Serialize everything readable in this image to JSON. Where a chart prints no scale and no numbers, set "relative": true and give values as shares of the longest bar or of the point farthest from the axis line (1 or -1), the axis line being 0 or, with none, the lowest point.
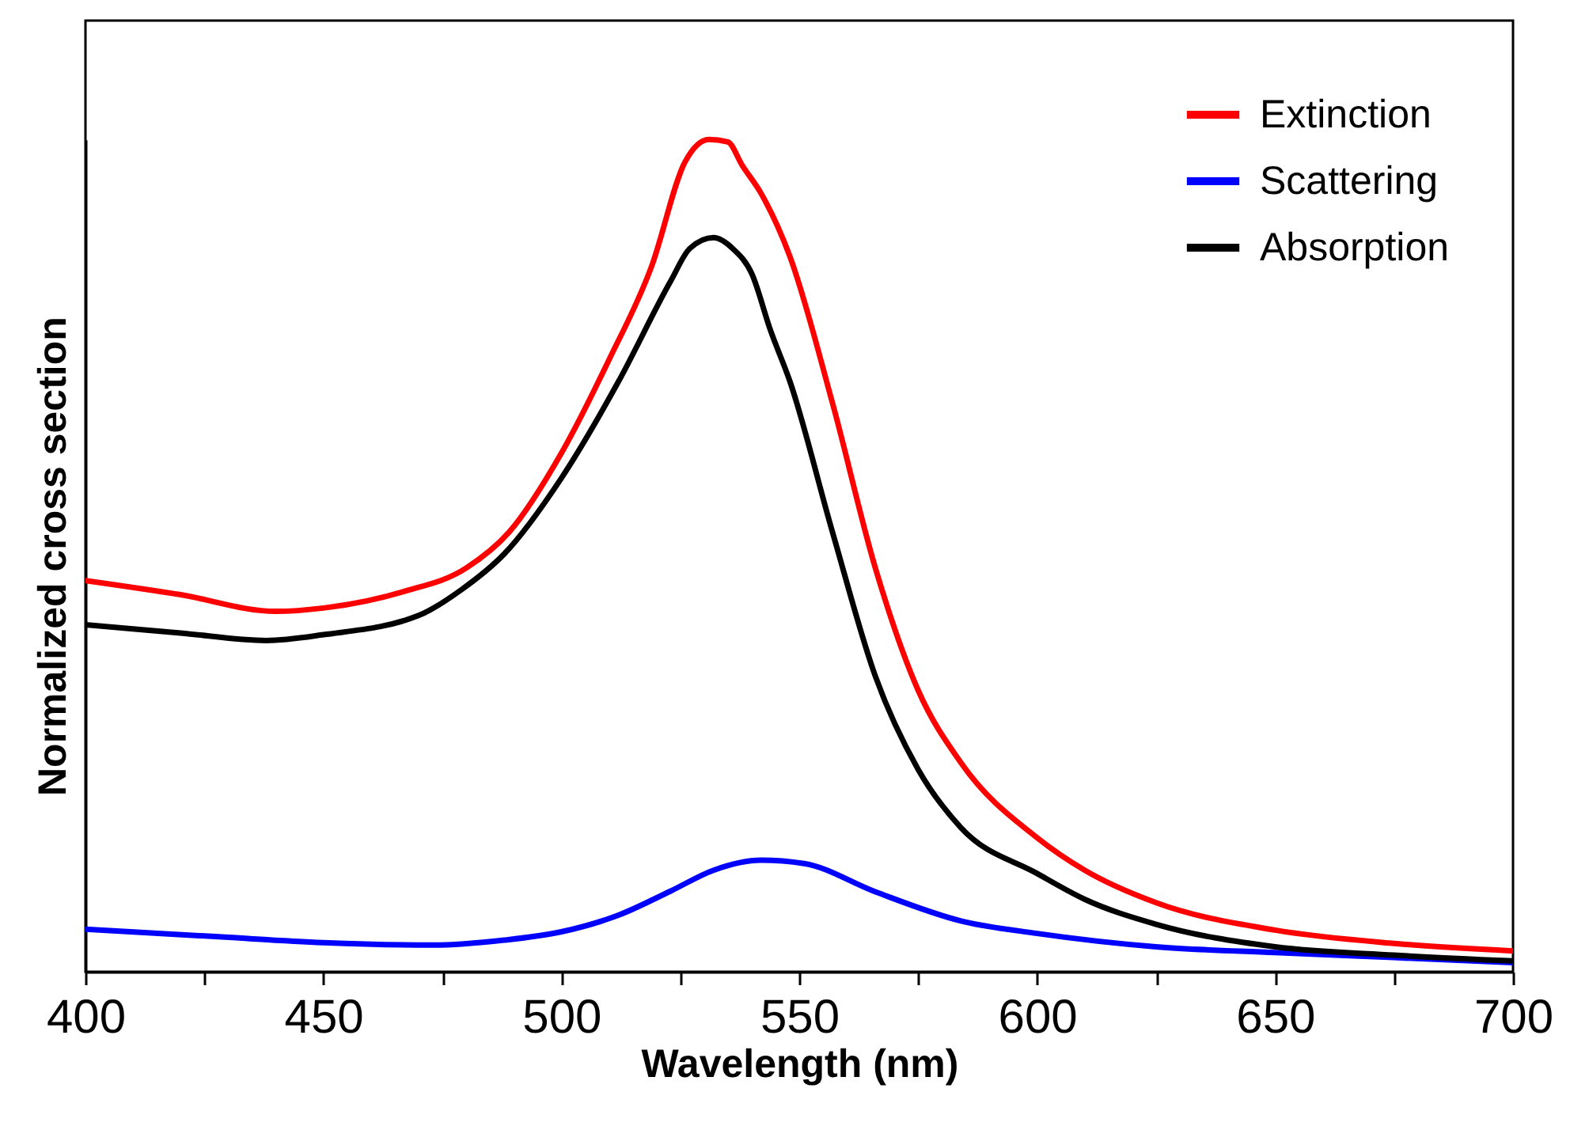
{
  "chart_data": {
    "type": "line",
    "xlabel": "Wavelength (nm)",
    "ylabel": "Normalized cross section",
    "relative": true,
    "xlim": [
      400,
      700
    ],
    "xticks": [
      400,
      {
        "value": 425,
        "label": null
      },
      450,
      {
        "value": 475,
        "label": null
      },
      500,
      {
        "value": 525,
        "label": null
      },
      550,
      {
        "value": 575,
        "label": null
      },
      600,
      {
        "value": 625,
        "label": null
      },
      650,
      {
        "value": 675,
        "label": null
      },
      700
    ],
    "legend": "top right",
    "tick_labels": "x",
    "line_style": "solid",
    "marker": "none",
    "series": [
      {
        "name": "Extinction",
        "color": "#ff0000",
        "x": [
          400,
          420,
          440,
          450,
          467,
          480,
          489,
          500,
          510,
          519,
          526,
          531,
          535,
          538,
          542,
          548,
          557,
          566,
          575,
          584,
          600,
          610,
          625,
          650,
          675,
          700
        ],
        "values": [
          0.47,
          0.453,
          0.433,
          0.437,
          0.457,
          0.485,
          0.528,
          0.623,
          0.735,
          0.848,
          0.973,
          1,
          0.997,
          0.969,
          0.935,
          0.86,
          0.683,
          0.485,
          0.338,
          0.251,
          0.161,
          0.122,
          0.083,
          0.05,
          0.034,
          0.025
        ]
      },
      {
        "name": "Scattering",
        "color": "#0000ff",
        "x": [
          400,
          428,
          450,
          473,
          488,
          500,
          512,
          523,
          532,
          542,
          551,
          566,
          584,
          600,
          625,
          650,
          675,
          700
        ],
        "values": [
          0.051,
          0.042,
          0.035,
          0.032,
          0.038,
          0.048,
          0.068,
          0.097,
          0.122,
          0.134,
          0.13,
          0.096,
          0.061,
          0.046,
          0.03,
          0.023,
          0.017,
          0.011
        ]
      },
      {
        "name": "Absorption",
        "color": "#000000",
        "x": [
          400,
          420,
          438,
          450,
          470,
          479,
          488,
          500,
          512,
          523,
          527,
          532,
          536,
          540,
          544,
          548,
          557,
          566,
          575,
          584,
          600,
          610,
          625,
          650,
          675,
          700
        ],
        "values": [
          0.417,
          0.407,
          0.398,
          0.405,
          0.428,
          0.459,
          0.502,
          0.593,
          0.709,
          0.83,
          0.869,
          0.882,
          0.869,
          0.839,
          0.77,
          0.71,
          0.528,
          0.355,
          0.243,
          0.173,
          0.118,
          0.087,
          0.057,
          0.03,
          0.02,
          0.013
        ]
      }
    ]
  }
}
